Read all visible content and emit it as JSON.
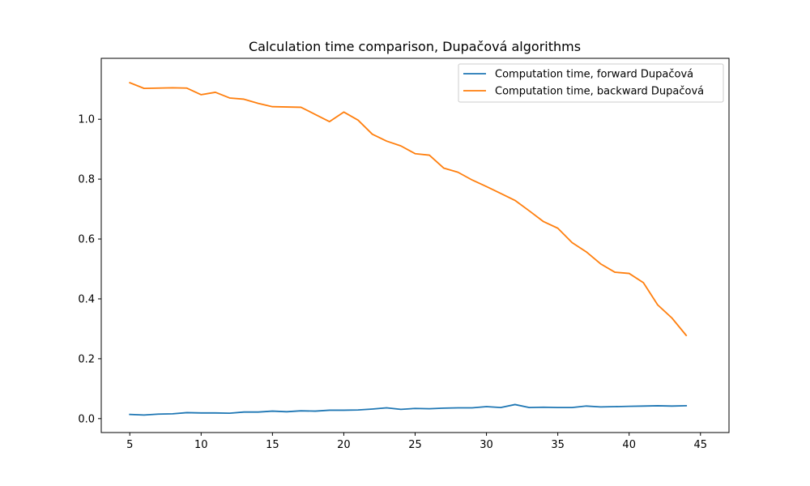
{
  "chart_data": {
    "type": "line",
    "title": "Calculation time comparison, Dupačová algorithms",
    "xlabel": "",
    "ylabel": "",
    "xlim": [
      3,
      47
    ],
    "ylim": [
      -0.0465,
      1.2035
    ],
    "xticks": [
      5,
      10,
      15,
      20,
      25,
      30,
      35,
      40,
      45
    ],
    "yticks": [
      0.0,
      0.2,
      0.4,
      0.6,
      0.8,
      1.0
    ],
    "xtick_labels": [
      "5",
      "10",
      "15",
      "20",
      "25",
      "30",
      "35",
      "40",
      "45"
    ],
    "ytick_labels": [
      "0.0",
      "0.2",
      "0.4",
      "0.6",
      "0.8",
      "1.0"
    ],
    "grid": false,
    "legend_position": "upper right",
    "x": [
      5,
      6,
      7,
      8,
      9,
      10,
      11,
      12,
      13,
      14,
      15,
      16,
      17,
      18,
      19,
      20,
      21,
      22,
      23,
      24,
      25,
      26,
      27,
      28,
      29,
      30,
      31,
      32,
      33,
      34,
      35,
      36,
      37,
      38,
      39,
      40,
      41,
      42,
      43,
      44
    ],
    "series": [
      {
        "name": "Computation time, forward Dupačová",
        "color": "#1f77b4",
        "values": [
          0.014,
          0.012,
          0.015,
          0.016,
          0.02,
          0.019,
          0.019,
          0.018,
          0.022,
          0.022,
          0.025,
          0.023,
          0.026,
          0.025,
          0.028,
          0.028,
          0.029,
          0.032,
          0.036,
          0.031,
          0.034,
          0.033,
          0.035,
          0.036,
          0.036,
          0.04,
          0.037,
          0.047,
          0.037,
          0.038,
          0.037,
          0.037,
          0.042,
          0.039,
          0.04,
          0.041,
          0.042,
          0.043,
          0.042,
          0.043
        ]
      },
      {
        "name": "Computation time, backward Dupačová",
        "color": "#ff7f0e",
        "values": [
          1.122,
          1.103,
          1.104,
          1.105,
          1.104,
          1.082,
          1.09,
          1.071,
          1.067,
          1.053,
          1.042,
          1.041,
          1.04,
          1.016,
          0.992,
          1.024,
          0.997,
          0.95,
          0.927,
          0.911,
          0.885,
          0.88,
          0.837,
          0.823,
          0.797,
          0.775,
          0.752,
          0.729,
          0.694,
          0.658,
          0.636,
          0.588,
          0.557,
          0.517,
          0.489,
          0.485,
          0.454,
          0.38,
          0.336,
          0.278
        ]
      }
    ]
  }
}
